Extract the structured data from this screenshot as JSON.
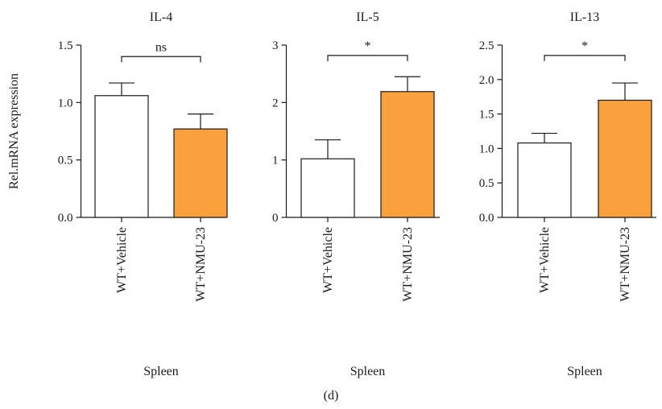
{
  "figure_label": "(d)",
  "chart_data": [
    {
      "type": "bar",
      "title": "IL-4",
      "ylabel": "Rel.mRNA expression",
      "xlabel": "Spleen",
      "categories": [
        "WT+Vehicle",
        "WT+NMU-23"
      ],
      "values": [
        1.06,
        0.77
      ],
      "errors": [
        0.11,
        0.13
      ],
      "bar_colors": [
        "#ffffff",
        "#f9a13c"
      ],
      "ylim": [
        0,
        1.5
      ],
      "yticks": [
        0,
        0.5,
        1.0,
        1.5
      ],
      "ytick_labels": [
        "0.0",
        "0.5",
        "1.0",
        "1.5"
      ],
      "significance": {
        "label": "ns",
        "level": 1.4,
        "bracket_drop": 0.05
      }
    },
    {
      "type": "bar",
      "title": "IL-5",
      "ylabel": "",
      "xlabel": "Spleen",
      "categories": [
        "WT+Vehicle",
        "WT+NMU-23"
      ],
      "values": [
        1.02,
        2.19
      ],
      "errors": [
        0.33,
        0.26
      ],
      "bar_colors": [
        "#ffffff",
        "#f9a13c"
      ],
      "ylim": [
        0,
        3
      ],
      "yticks": [
        0,
        1,
        2,
        3
      ],
      "ytick_labels": [
        "0",
        "1",
        "2",
        "3"
      ],
      "significance": {
        "label": "*",
        "level": 2.82,
        "bracket_drop": 0.1
      }
    },
    {
      "type": "bar",
      "title": "IL-13",
      "ylabel": "",
      "xlabel": "Spleen",
      "categories": [
        "WT+Vehicle",
        "WT+NMU-23"
      ],
      "values": [
        1.08,
        1.7
      ],
      "errors": [
        0.14,
        0.25
      ],
      "bar_colors": [
        "#ffffff",
        "#f9a13c"
      ],
      "ylim": [
        0,
        2.5
      ],
      "yticks": [
        0,
        0.5,
        1.0,
        1.5,
        2.0,
        2.5
      ],
      "ytick_labels": [
        "0.0",
        "0.5",
        "1.0",
        "1.5",
        "2.0",
        "2.5"
      ],
      "significance": {
        "label": "*",
        "level": 2.35,
        "bracket_drop": 0.08
      }
    }
  ]
}
